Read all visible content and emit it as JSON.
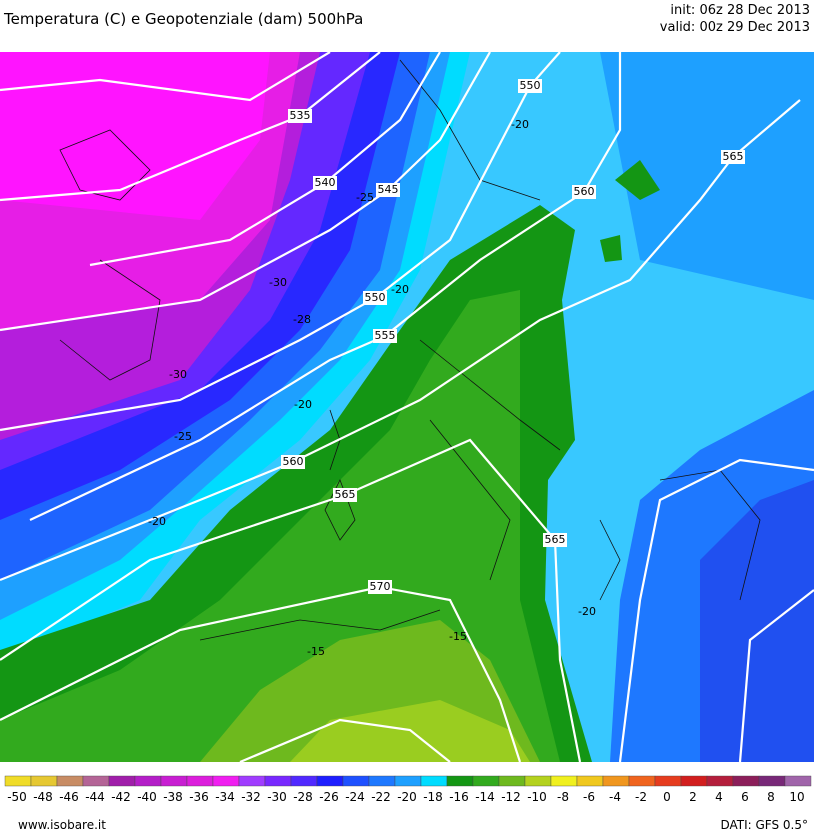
{
  "header": {
    "title": "Temperatura (C) e Geopotenziale (dam) 500hPa",
    "init": "init: 06z 28 Dec 2013",
    "valid": "valid: 00z 29 Dec 2013"
  },
  "map": {
    "contour_labels": [
      "535",
      "540",
      "545",
      "550",
      "560",
      "565",
      "550",
      "555",
      "560",
      "565",
      "570",
      "565",
      "-20",
      "-25",
      "-30",
      "-28",
      "-30",
      "-25",
      "-20",
      "-20",
      "-20",
      "-15",
      "-15",
      "-20"
    ]
  },
  "colorbar": {
    "labels": [
      -50,
      -48,
      -46,
      -44,
      -42,
      -40,
      -38,
      -36,
      -34,
      -32,
      -30,
      -28,
      -26,
      -24,
      -22,
      -20,
      -18,
      -16,
      -14,
      -12,
      -10,
      -8,
      -6,
      -4,
      -2,
      0,
      2,
      4,
      6,
      8,
      10
    ],
    "colors": [
      "#f0dc28",
      "#e6c832",
      "#c88c64",
      "#b46496",
      "#a01eaa",
      "#b41ec8",
      "#c81ed2",
      "#dc1edc",
      "#f01ef0",
      "#a03cff",
      "#7828ff",
      "#5028ff",
      "#1e1eff",
      "#1e50ff",
      "#1e78ff",
      "#1ea0ff",
      "#00dcff",
      "#149614",
      "#32aa1e",
      "#6eb91e",
      "#b4d21e",
      "#f0f01e",
      "#f0c81e",
      "#f0961e",
      "#f0641e",
      "#e63c1e",
      "#d21e1e",
      "#b41e3c",
      "#8c1e5a",
      "#782878",
      "#a064aa"
    ]
  },
  "footer": {
    "site": "www.isobare.it",
    "source": "DATI: GFS 0.5°"
  }
}
